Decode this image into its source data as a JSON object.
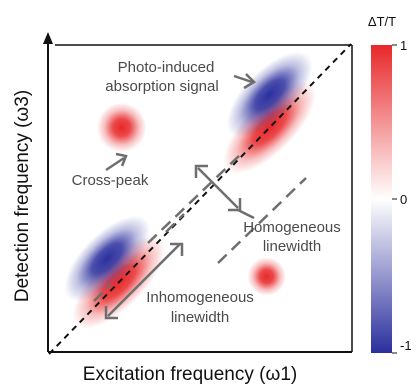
{
  "chart_data": {
    "type": "heatmap",
    "title": "",
    "xlabel": "Excitation frequency (ω1)",
    "ylabel": "Detection frequency (ω3)",
    "colorbar": {
      "label": "ΔT/T",
      "ticks": [
        {
          "value": 1,
          "label": "1"
        },
        {
          "value": 0,
          "label": "0"
        },
        {
          "value": -1,
          "label": "-1"
        }
      ],
      "colors": {
        "max": "#e8282a",
        "zero": "#ffffff",
        "min": "#2b2f9e"
      }
    },
    "xlim": [
      0,
      1
    ],
    "ylim": [
      0,
      1
    ],
    "diagonal": {
      "style": "dashed",
      "from": [
        0,
        0
      ],
      "to": [
        1,
        1
      ]
    },
    "peaks": [
      {
        "name": "Diagonal peak, lower",
        "x": 0.22,
        "y": 0.22,
        "sign": 1,
        "sigma_along": 0.11,
        "sigma_across": 0.045
      },
      {
        "name": "Photo-induced absorption, lower",
        "x": 0.18,
        "y": 0.3,
        "sign": -1,
        "sigma_along": 0.1,
        "sigma_across": 0.045
      },
      {
        "name": "Diagonal peak, upper",
        "x": 0.74,
        "y": 0.74,
        "sign": 1,
        "sigma_along": 0.11,
        "sigma_across": 0.045
      },
      {
        "name": "Photo-induced absorption, upper",
        "x": 0.74,
        "y": 0.85,
        "sign": -1,
        "sigma_along": 0.1,
        "sigma_across": 0.045
      },
      {
        "name": "Cross-peak, upper-left",
        "x": 0.23,
        "y": 0.74,
        "sign": 1,
        "sigma_along": 0.045,
        "sigma_across": 0.045
      },
      {
        "name": "Cross-peak, lower-right",
        "x": 0.73,
        "y": 0.24,
        "sign": 1,
        "sigma_along": 0.035,
        "sigma_across": 0.035
      }
    ],
    "annotations": [
      {
        "text": [
          "Photo-induced",
          "absorption signal"
        ],
        "points_to": "Photo-induced absorption, upper"
      },
      {
        "text": [
          "Cross-peak"
        ],
        "points_to": "Cross-peak, upper-left"
      },
      {
        "text": [
          "Homogeneous",
          "linewidth"
        ],
        "indicates": "width perpendicular to diagonal"
      },
      {
        "text": [
          "Inhomogeneous",
          "linewidth"
        ],
        "indicates": "length along diagonal"
      }
    ]
  }
}
